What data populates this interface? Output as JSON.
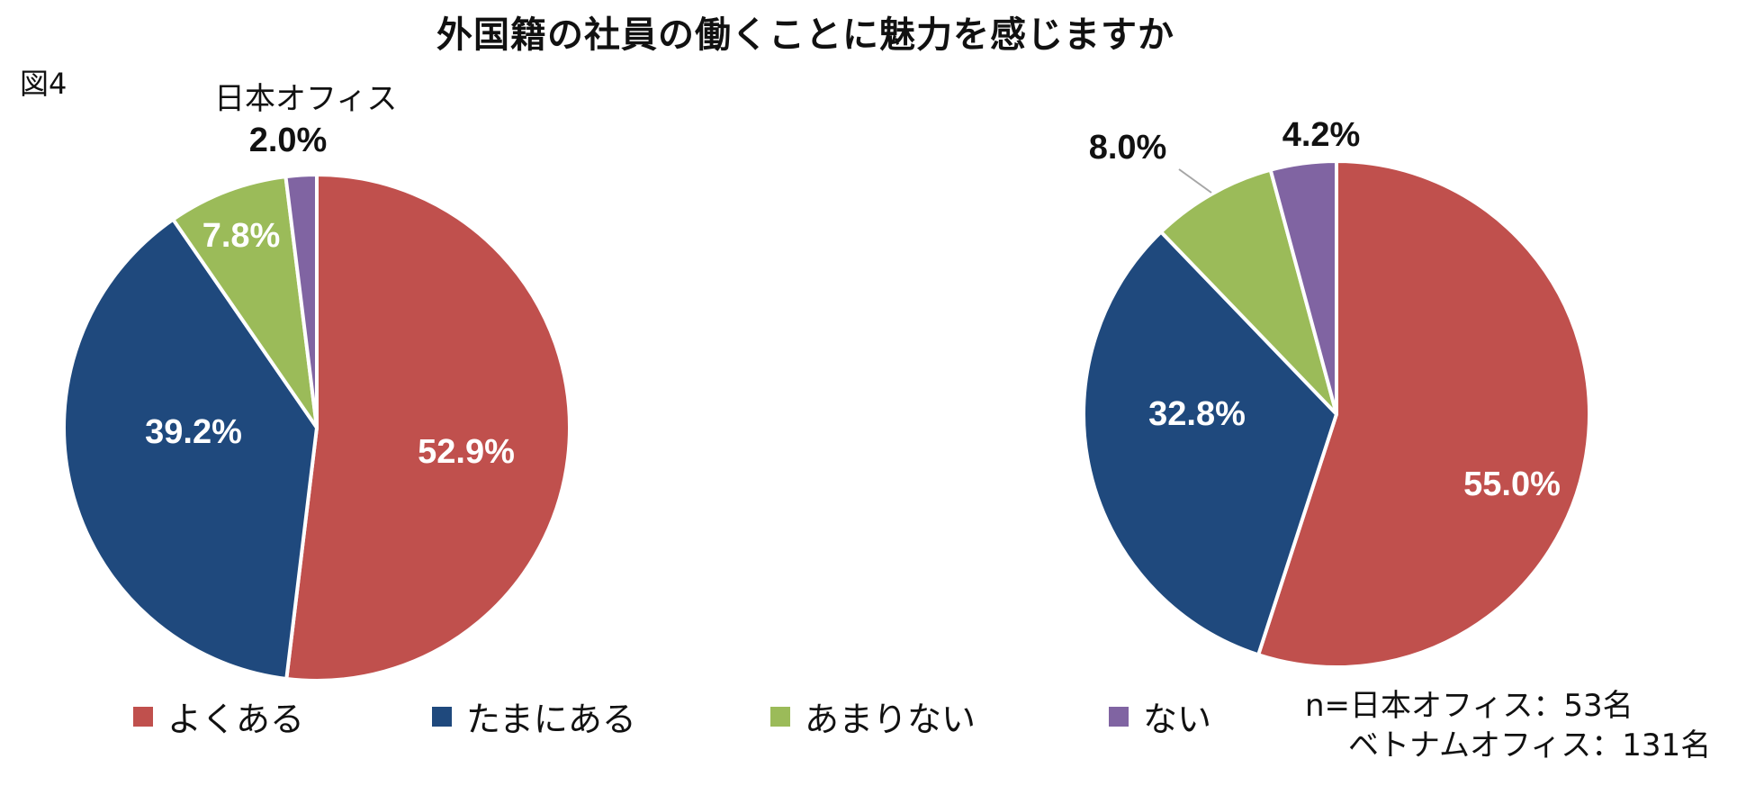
{
  "title": "外国籍の社員の働くことに魅力を感じますか",
  "figure_label": "図4",
  "left_caption": "日本オフィス",
  "note": {
    "line1": "n=日本オフィス：53名",
    "line2": "ベトナムオフィス：131名"
  },
  "colors": {
    "よくある": "#c0504d",
    "たまにある": "#1f497d",
    "あまりない": "#9bbb59",
    "ない": "#8064a2"
  },
  "legend": [
    {
      "label": "よくある",
      "color": "#c0504d"
    },
    {
      "label": "たまにある",
      "color": "#1f497d"
    },
    {
      "label": "あまりない",
      "color": "#9bbb59"
    },
    {
      "label": "ない",
      "color": "#8064a2"
    }
  ],
  "chart_data": [
    {
      "type": "pie",
      "title": "日本オフィス",
      "categories": [
        "よくある",
        "たまにある",
        "あまりない",
        "ない"
      ],
      "values": [
        52.9,
        39.2,
        7.8,
        2.0
      ],
      "value_labels": [
        "52.9%",
        "39.2%",
        "7.8%",
        "2.0%"
      ]
    },
    {
      "type": "pie",
      "title": "",
      "categories": [
        "よくある",
        "たまにある",
        "あまりない",
        "ない"
      ],
      "values": [
        55.0,
        32.8,
        8.0,
        4.2
      ],
      "value_labels": [
        "55.0%",
        "32.8%",
        "8.0%",
        "4.2%"
      ]
    }
  ]
}
